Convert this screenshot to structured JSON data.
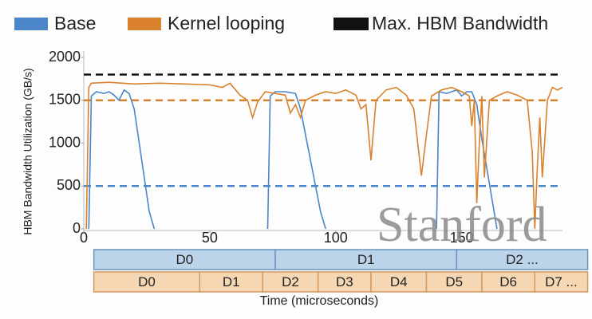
{
  "chart_data": {
    "type": "line",
    "y_label": "HBM Bandwidth Utilization (GB/s)",
    "x_label": "Time (microseconds)",
    "xlim": [
      0,
      190
    ],
    "ylim": [
      0,
      2000
    ],
    "xticks": [
      0,
      50,
      100,
      150
    ],
    "yticks": [
      0,
      500,
      1000,
      1500,
      2000
    ],
    "series": [
      {
        "name": "Base",
        "color": "#4a86c8",
        "x": [
          2,
          3,
          5,
          8,
          10,
          12,
          14,
          16,
          18,
          20,
          22,
          24,
          26,
          28,
          30,
          73,
          74,
          76,
          80,
          84,
          86,
          88,
          90,
          92,
          94,
          96,
          100,
          140,
          141,
          144,
          148,
          150,
          152,
          154,
          156,
          158,
          160,
          162,
          164
        ],
        "values": [
          0,
          1550,
          1600,
          1580,
          1600,
          1560,
          1500,
          1620,
          1580,
          1400,
          1000,
          600,
          200,
          0,
          null,
          0,
          1550,
          1600,
          1600,
          1580,
          1400,
          1100,
          800,
          500,
          200,
          0,
          null,
          0,
          1600,
          1580,
          1620,
          1550,
          1600,
          1600,
          1450,
          1050,
          700,
          350,
          0
        ]
      },
      {
        "name": "Kernel looping",
        "color": "#d9822b",
        "x": [
          1,
          2,
          3,
          10,
          20,
          30,
          40,
          50,
          55,
          58,
          62,
          65,
          67,
          69,
          72,
          76,
          80,
          82,
          84,
          86,
          88,
          92,
          96,
          100,
          104,
          108,
          110,
          112,
          114,
          116,
          120,
          124,
          128,
          131,
          134,
          136,
          138,
          142,
          146,
          150,
          153,
          154,
          155,
          156,
          157,
          158,
          159,
          161,
          164,
          168,
          172,
          176,
          178,
          179,
          180,
          181,
          182,
          184,
          186,
          188,
          190
        ],
        "values": [
          0,
          1650,
          1700,
          1710,
          1690,
          1700,
          1690,
          1680,
          1650,
          1700,
          1560,
          1500,
          1300,
          1480,
          1600,
          1580,
          1560,
          1350,
          1450,
          1300,
          1500,
          1560,
          1600,
          1580,
          1620,
          1560,
          1400,
          1450,
          800,
          1500,
          1620,
          1650,
          1560,
          1400,
          620,
          1100,
          1550,
          1620,
          1650,
          1600,
          1550,
          1200,
          1500,
          300,
          1000,
          1550,
          600,
          1500,
          1550,
          1600,
          1560,
          1500,
          900,
          0,
          700,
          1300,
          600,
          1500,
          1650,
          1620,
          1650
        ]
      }
    ],
    "max_line": {
      "name": "Max. HBM Bandwidth",
      "value": 1800,
      "color": "#111111"
    },
    "hlines": [
      {
        "value": 1500,
        "color": "#d9822b"
      },
      {
        "value": 500,
        "color": "#4a86c8"
      }
    ],
    "watermark": "Stanford",
    "timeline": [
      {
        "fill": "#bcd4ea",
        "stroke": "#6b93bf",
        "segments": [
          {
            "label": "D0",
            "start": 4,
            "end": 76
          },
          {
            "label": "D1",
            "start": 76,
            "end": 148
          },
          {
            "label": "D2 ...",
            "start": 148,
            "end": 200
          }
        ]
      },
      {
        "fill": "#f6d7b3",
        "stroke": "#d39a5e",
        "segments": [
          {
            "label": "D0",
            "start": 4,
            "end": 46
          },
          {
            "label": "D1",
            "start": 46,
            "end": 71
          },
          {
            "label": "D2",
            "start": 71,
            "end": 93
          },
          {
            "label": "D3",
            "start": 93,
            "end": 114
          },
          {
            "label": "D4",
            "start": 114,
            "end": 136
          },
          {
            "label": "D5",
            "start": 136,
            "end": 158
          },
          {
            "label": "D6",
            "start": 158,
            "end": 179
          },
          {
            "label": "D7 ...",
            "start": 179,
            "end": 200
          }
        ]
      }
    ]
  }
}
